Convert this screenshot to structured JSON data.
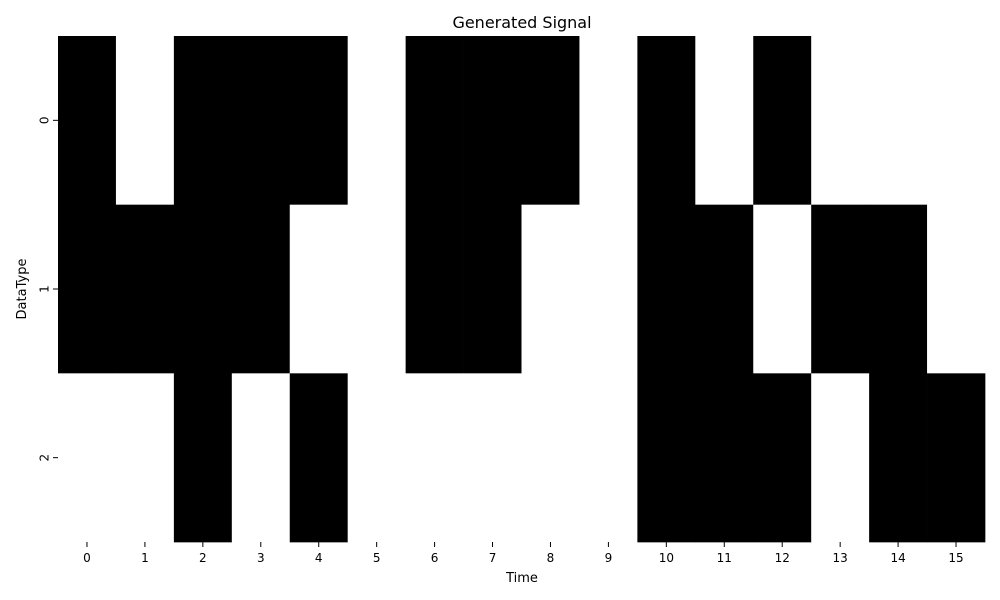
{
  "chart_data": {
    "type": "heatmap",
    "title": "Generated Signal",
    "xlabel": "Time",
    "ylabel": "DataType",
    "x": [
      "0",
      "1",
      "2",
      "3",
      "4",
      "5",
      "6",
      "7",
      "8",
      "9",
      "10",
      "11",
      "12",
      "13",
      "14",
      "15"
    ],
    "y": [
      "0",
      "1",
      "2"
    ],
    "values": [
      [
        1,
        0,
        1,
        1,
        1,
        0,
        1,
        1,
        1,
        0,
        1,
        0,
        1,
        0,
        0,
        0
      ],
      [
        1,
        1,
        1,
        1,
        0,
        0,
        1,
        1,
        0,
        0,
        1,
        1,
        0,
        1,
        1,
        0
      ],
      [
        0,
        0,
        1,
        0,
        1,
        0,
        0,
        0,
        0,
        0,
        1,
        1,
        1,
        0,
        1,
        1
      ]
    ],
    "colors": {
      "on": "#000000",
      "off": "#ffffff"
    },
    "colorbar": false,
    "grid": false
  }
}
